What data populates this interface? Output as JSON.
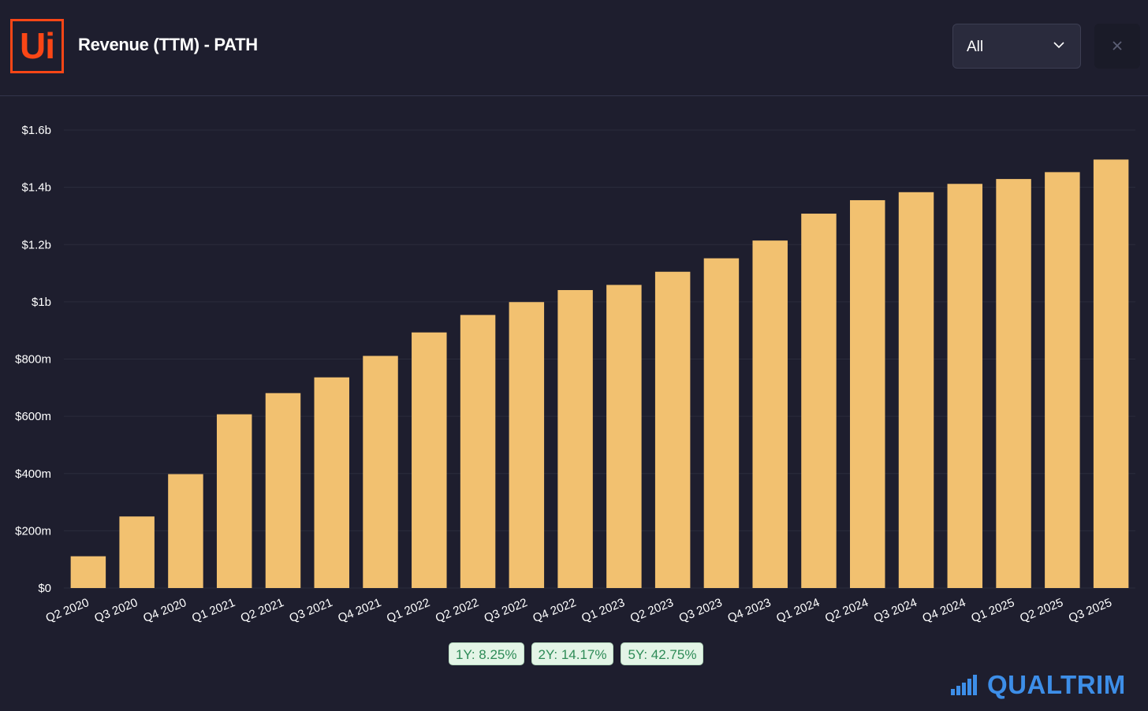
{
  "header": {
    "logo_text": "Ui",
    "title": "Revenue (TTM) - PATH",
    "period_select": {
      "value": "All"
    }
  },
  "colors": {
    "background": "#1e1e2e",
    "bar": "#f2c170",
    "logo": "#fa4616",
    "badge_text": "#2e8b57",
    "brand": "#3d8ee8"
  },
  "chart_data": {
    "type": "bar",
    "title": "Revenue (TTM) - PATH",
    "categories": [
      "Q2 2020",
      "Q3 2020",
      "Q4 2020",
      "Q1 2021",
      "Q2 2021",
      "Q3 2021",
      "Q4 2021",
      "Q1 2022",
      "Q2 2022",
      "Q3 2022",
      "Q4 2022",
      "Q1 2023",
      "Q2 2023",
      "Q3 2023",
      "Q4 2023",
      "Q1 2024",
      "Q2 2024",
      "Q3 2024",
      "Q4 2024",
      "Q1 2025",
      "Q2 2025",
      "Q3 2025"
    ],
    "values": [
      0.111,
      0.25,
      0.398,
      0.607,
      0.681,
      0.736,
      0.811,
      0.893,
      0.954,
      0.999,
      1.041,
      1.059,
      1.105,
      1.152,
      1.214,
      1.308,
      1.355,
      1.383,
      1.412,
      1.429,
      1.453,
      1.497
    ],
    "unit": "billions USD",
    "ylim": [
      0,
      1.6
    ],
    "yticks": [
      {
        "value": 0,
        "label": "$0"
      },
      {
        "value": 0.2,
        "label": "$200m"
      },
      {
        "value": 0.4,
        "label": "$400m"
      },
      {
        "value": 0.6,
        "label": "$600m"
      },
      {
        "value": 0.8,
        "label": "$800m"
      },
      {
        "value": 1.0,
        "label": "$1b"
      },
      {
        "value": 1.2,
        "label": "$1.2b"
      },
      {
        "value": 1.4,
        "label": "$1.4b"
      },
      {
        "value": 1.6,
        "label": "$1.6b"
      }
    ],
    "grid": true,
    "legend": "none"
  },
  "growth_badges": [
    {
      "label": "1Y: 8.25%"
    },
    {
      "label": "2Y: 14.17%"
    },
    {
      "label": "5Y: 42.75%"
    }
  ],
  "brand": {
    "name": "QUALTRIM",
    "icon": "signal-bars-icon"
  }
}
